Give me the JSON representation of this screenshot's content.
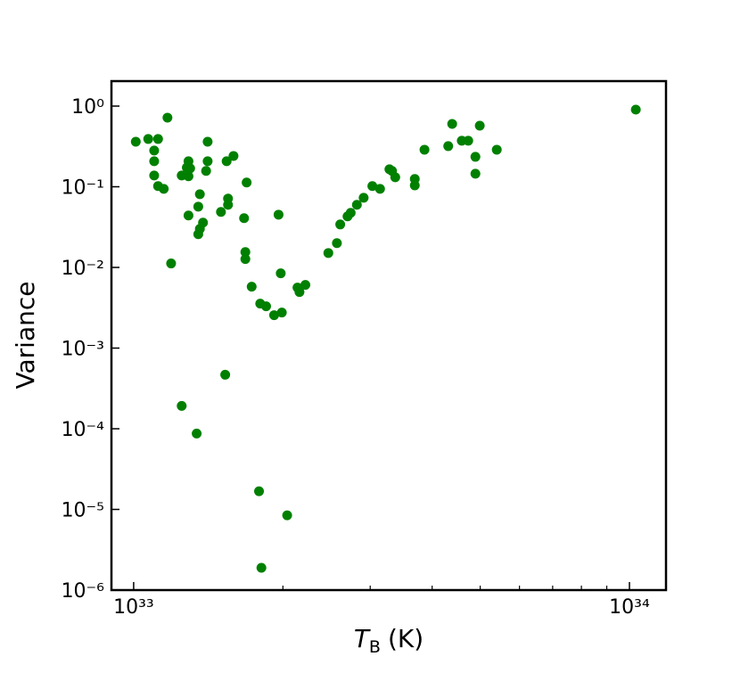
{
  "chart_data": {
    "type": "scatter",
    "xlabel": {
      "symbol": "T",
      "subscript": "B",
      "unit": "(K)"
    },
    "ylabel": "Variance",
    "color": "#008000",
    "xlog": true,
    "ylog": true,
    "xlim": [
      9.02e+32,
      1.185e+34
    ],
    "ylim": [
      1e-06,
      2.04
    ],
    "xticks": [
      {
        "value": 1e+33,
        "label": "10³³"
      },
      {
        "value": 1e+34,
        "label": "10³⁴"
      }
    ],
    "xminorticks": [
      2e+33,
      3e+33,
      4e+33,
      5e+33,
      6e+33,
      7e+33,
      8e+33,
      9e+33
    ],
    "yticks": [
      {
        "value": 1e-06,
        "label": "10⁻⁶"
      },
      {
        "value": 1e-05,
        "label": "10⁻⁵"
      },
      {
        "value": 0.0001,
        "label": "10⁻⁴"
      },
      {
        "value": 0.001,
        "label": "10⁻³"
      },
      {
        "value": 0.01,
        "label": "10⁻²"
      },
      {
        "value": 0.1,
        "label": "10⁻¹"
      },
      {
        "value": 1,
        "label": "10⁰"
      }
    ],
    "x": [
      1.01e+33,
      1.07e+33,
      1.12e+33,
      1.1e+33,
      1.1e+33,
      1.1e+33,
      1.12e+33,
      1.15e+33,
      1.17e+33,
      1.19e+33,
      1.25e+33,
      1.25e+33,
      1.28e+33,
      1.29e+33,
      1.3e+33,
      1.29e+33,
      1.29e+33,
      1.34e+33,
      1.35e+33,
      1.35e+33,
      1.36e+33,
      1.36e+33,
      1.38e+33,
      1.4e+33,
      1.41e+33,
      1.41e+33,
      1.5e+33,
      1.53e+33,
      1.54e+33,
      1.55e+33,
      1.55e+33,
      1.59e+33,
      1.67e+33,
      1.68e+33,
      1.68e+33,
      1.69e+33,
      1.73e+33,
      1.8e+33,
      1.85e+33,
      1.92e+33,
      1.96e+33,
      1.98e+33,
      1.99e+33,
      1.79e+33,
      1.81e+33,
      2.04e+33,
      2.14e+33,
      2.16e+33,
      2.22e+33,
      2.47e+33,
      2.57e+33,
      2.61e+33,
      2.7e+33,
      2.74e+33,
      2.82e+33,
      2.91e+33,
      3.03e+33,
      3.14e+33,
      3.28e+33,
      3.32e+33,
      3.37e+33,
      3.69e+33,
      3.69e+33,
      3.86e+33,
      4.31e+33,
      4.39e+33,
      4.59e+33,
      4.73e+33,
      4.89e+33,
      4.89e+33,
      4.99e+33,
      5.4e+33,
      1.03e+34
    ],
    "values": [
      0.362,
      0.391,
      0.391,
      0.281,
      0.207,
      0.138,
      0.102,
      0.0942,
      0.719,
      0.0112,
      0.000192,
      0.138,
      0.173,
      0.207,
      0.169,
      0.135,
      0.044,
      8.73e-05,
      0.0258,
      0.0567,
      0.0809,
      0.0301,
      0.0359,
      0.157,
      0.362,
      0.207,
      0.0488,
      0.000467,
      0.207,
      0.0597,
      0.0713,
      0.241,
      0.0408,
      0.0155,
      0.0127,
      0.113,
      0.00577,
      0.00356,
      0.0033,
      0.00256,
      0.0451,
      0.00845,
      0.00276,
      1.68e-05,
      1.89e-06,
      8.45e-06,
      0.00562,
      0.00495,
      0.00607,
      0.0151,
      0.02,
      0.0341,
      0.0429,
      0.0475,
      0.0597,
      0.0731,
      0.102,
      0.0942,
      0.165,
      0.157,
      0.131,
      0.125,
      0.104,
      0.288,
      0.319,
      0.601,
      0.372,
      0.372,
      0.235,
      0.145,
      0.572,
      0.288,
      0.904
    ]
  }
}
